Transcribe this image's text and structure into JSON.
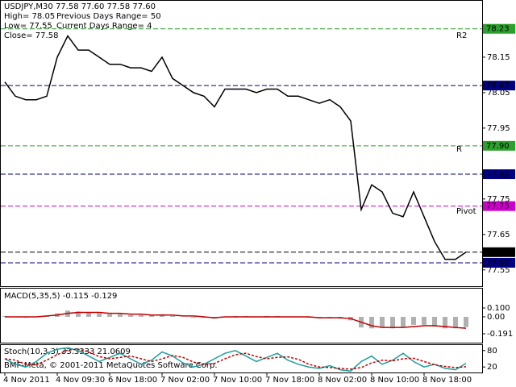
{
  "chart_data": [
    {
      "type": "line",
      "title": "USDJPY,M30  77.58 77.60 77.58 77.60",
      "annotations": [
        "High= 78.05",
        "Low= 77.55",
        "Close= 77.58",
        "Previous Days Range= 50",
        "Current Days Range= 4",
        "R2",
        "R",
        "Pivot"
      ],
      "categories": [
        "4 Nov 2011",
        null,
        null,
        null,
        null,
        "4 Nov 09:30",
        null,
        null,
        null,
        null,
        "6 Nov 18:00",
        null,
        null,
        null,
        null,
        "7 Nov 02:00",
        null,
        null,
        null,
        null,
        "7 Nov 10:00",
        null,
        null,
        null,
        null,
        "7 Nov 18:00",
        null,
        null,
        null,
        null,
        "8 Nov 02:00",
        null,
        null,
        null,
        null,
        "8 Nov 10:00",
        null,
        null,
        null,
        null,
        "8 Nov 18:00",
        null,
        null,
        null,
        null
      ],
      "values": [
        78.08,
        78.04,
        78.03,
        78.03,
        78.04,
        78.15,
        78.21,
        78.17,
        78.17,
        78.15,
        78.13,
        78.13,
        78.12,
        78.12,
        78.11,
        78.15,
        78.09,
        78.07,
        78.05,
        78.04,
        78.01,
        78.06,
        78.06,
        78.06,
        78.05,
        78.06,
        78.06,
        78.04,
        78.04,
        78.03,
        78.02,
        78.03,
        78.01,
        77.97,
        77.72,
        77.79,
        77.77,
        77.71,
        77.7,
        77.77,
        77.7,
        77.63,
        77.58,
        77.58,
        77.6
      ],
      "color": "#000000",
      "ylim": [
        77.504,
        78.309
      ],
      "yticks": [
        78.15,
        78.05,
        77.95,
        77.75,
        77.65,
        77.55
      ],
      "markers": [
        {
          "value": 78.23,
          "label": "78.23",
          "color": "#2ca02c"
        },
        {
          "value": 78.07,
          "label": "78.07",
          "color": "#000080"
        },
        {
          "value": 77.9,
          "label": "77.90",
          "color": "#2ca02c"
        },
        {
          "value": 77.82,
          "label": "77.82",
          "color": "#000080"
        },
        {
          "value": 77.73,
          "label": "77.73",
          "color": "#cc00cc"
        },
        {
          "value": 77.6,
          "label": "77.60",
          "color": "#000000"
        },
        {
          "value": 77.57,
          "label": "77.57",
          "color": "#000080"
        }
      ]
    },
    {
      "type": "macd",
      "title": "MACD(5,35,5) -0.115 -0.129",
      "values": [
        0.01,
        0,
        -0.01,
        0,
        0.01,
        0.04,
        0.07,
        0.06,
        0.05,
        0.04,
        0.03,
        0.03,
        0.02,
        0.02,
        0.02,
        0.03,
        0.01,
        0,
        -0.01,
        -0.01,
        -0.02,
        0,
        0.01,
        0.01,
        0,
        0.01,
        0.01,
        0,
        0,
        -0.01,
        -0.01,
        -0.01,
        -0.02,
        -0.04,
        -0.12,
        -0.13,
        -0.12,
        -0.13,
        -0.12,
        -0.09,
        -0.09,
        -0.11,
        -0.13,
        -0.13,
        -0.115
      ],
      "signal": [
        0,
        0,
        0,
        0,
        0.01,
        0.02,
        0.04,
        0.05,
        0.05,
        0.05,
        0.04,
        0.04,
        0.03,
        0.03,
        0.02,
        0.02,
        0.02,
        0.01,
        0.01,
        0,
        -0.01,
        0,
        0,
        0,
        0,
        0,
        0,
        0,
        0,
        0,
        -0.01,
        -0.01,
        -0.01,
        -0.02,
        -0.06,
        -0.1,
        -0.12,
        -0.12,
        -0.12,
        -0.11,
        -0.1,
        -0.1,
        -0.11,
        -0.12,
        -0.129
      ],
      "color": "#b0b0b0",
      "signal_color": "#c00000",
      "ylim": [
        -0.291,
        0.318
      ],
      "yticks": [
        {
          "value": 0.1,
          "label": "0.100"
        },
        {
          "value": 0,
          "label": "0.00"
        },
        -0.191
      ]
    },
    {
      "type": "stoch",
      "title": "Stoch(10,3,3) 33.3333 21.0609",
      "footer": "BMF-Meta, © 2001-2011 MetaQuotes Software Corp.",
      "values": [
        50,
        30,
        20,
        40,
        70,
        85,
        90,
        80,
        60,
        40,
        55,
        70,
        50,
        30,
        45,
        75,
        60,
        35,
        20,
        30,
        50,
        70,
        80,
        60,
        40,
        55,
        70,
        45,
        30,
        20,
        15,
        25,
        10,
        5,
        40,
        60,
        30,
        45,
        70,
        40,
        20,
        30,
        15,
        10,
        33.3333
      ],
      "signal": [
        50,
        45,
        30,
        28,
        45,
        65,
        82,
        85,
        75,
        58,
        50,
        55,
        60,
        50,
        40,
        50,
        62,
        55,
        38,
        28,
        33,
        50,
        65,
        70,
        58,
        50,
        55,
        57,
        48,
        30,
        20,
        18,
        15,
        12,
        18,
        35,
        45,
        42,
        50,
        52,
        40,
        28,
        22,
        18,
        21.0609
      ],
      "color": "#1f9e9e",
      "signal_color": "#c00000",
      "ylim": [
        0,
        100
      ],
      "yticks": [
        80,
        20
      ]
    }
  ]
}
